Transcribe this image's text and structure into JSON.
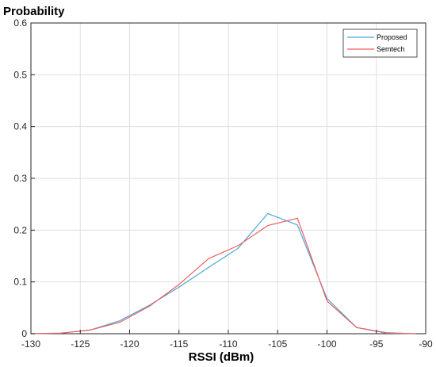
{
  "chart_data": {
    "type": "line",
    "title": "",
    "xlabel": "RSSI (dBm)",
    "ylabel": "Probability",
    "xlim": [
      -130,
      -90
    ],
    "ylim": [
      0,
      0.6
    ],
    "xticks": [
      -130,
      -125,
      -120,
      -115,
      -110,
      -105,
      -100,
      -95,
      -90
    ],
    "xtick_labels": [
      "-130",
      "-125",
      "-120",
      "-115",
      "-110",
      "-105",
      "-100",
      "-95",
      "-90"
    ],
    "yticks": [
      0,
      0.1,
      0.2,
      0.3,
      0.4,
      0.5,
      0.6
    ],
    "ytick_labels": [
      "0",
      "0.1",
      "0.2",
      "0.3",
      "0.4",
      "0.5",
      "0.6"
    ],
    "grid": true,
    "legend_position": "top-right",
    "series": [
      {
        "name": "Proposed",
        "color": "#4aa5d8",
        "x": [
          -130,
          -127,
          -124,
          -121,
          -118,
          -115,
          -112,
          -109,
          -106,
          -103,
          -100,
          -97,
          -94,
          -91
        ],
        "y": [
          0.0,
          0.001,
          0.007,
          0.025,
          0.055,
          0.09,
          0.128,
          0.165,
          0.232,
          0.21,
          0.068,
          0.012,
          0.001,
          0.0
        ]
      },
      {
        "name": "Semtech",
        "color": "#f25c5c",
        "x": [
          -130,
          -127,
          -124,
          -121,
          -118,
          -115,
          -112,
          -109,
          -106,
          -103,
          -100,
          -97,
          -94,
          -91
        ],
        "y": [
          0.0,
          0.001,
          0.007,
          0.022,
          0.053,
          0.095,
          0.145,
          0.17,
          0.209,
          0.223,
          0.063,
          0.012,
          0.002,
          0.0
        ]
      }
    ]
  }
}
